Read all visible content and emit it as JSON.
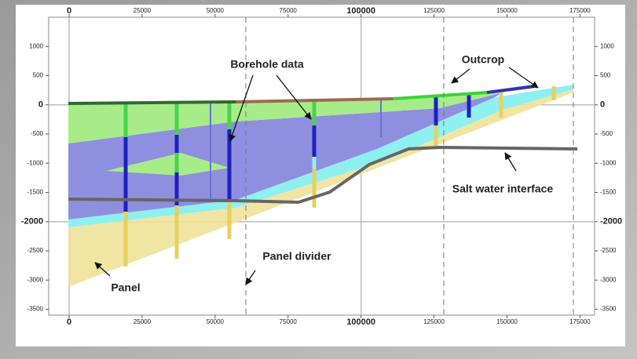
{
  "axes": {
    "xlim": [
      -7000,
      180000
    ],
    "ylim": [
      -3600,
      1500
    ],
    "xticks": [
      0,
      25000,
      50000,
      75000,
      100000,
      125000,
      150000,
      175000
    ],
    "yticks": [
      1000,
      500,
      0,
      -500,
      -1000,
      -1500,
      -2000,
      -2500,
      -3000,
      -3500
    ]
  },
  "annotations": {
    "borehole_data": "Borehole data",
    "outcrop": "Outcrop",
    "salt_water_interface": "Salt water interface",
    "panel_divider": "Panel divider",
    "panel": "Panel"
  }
}
